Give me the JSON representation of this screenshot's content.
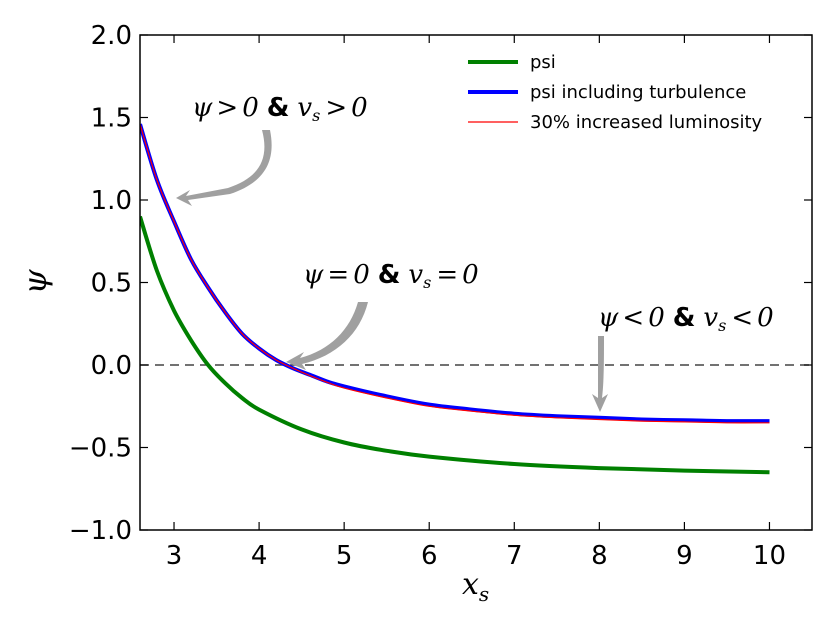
{
  "chart_data": {
    "type": "line",
    "xlabel": "x_s",
    "ylabel": "ψ",
    "xlim": [
      2.6,
      10.5
    ],
    "ylim": [
      -1.0,
      2.0
    ],
    "xticks": [
      3,
      4,
      5,
      6,
      7,
      8,
      9,
      10
    ],
    "yticks": [
      2.0,
      1.5,
      1.0,
      0.5,
      0.0,
      -0.5,
      -1.0
    ],
    "ytick_labels": [
      "2.0",
      "1.5",
      "1.0",
      "0.5",
      "0.0",
      "−0.5",
      "−1.0"
    ],
    "legend_position": "top-right",
    "reference_line": {
      "y": 0.0,
      "style": "dashed"
    },
    "series": [
      {
        "name": "psi",
        "color": "#008000",
        "x": [
          2.6,
          2.8,
          3.0,
          3.2,
          3.4,
          3.6,
          3.8,
          4.0,
          4.5,
          5.0,
          5.5,
          6.0,
          7.0,
          8.0,
          9.0,
          10.0
        ],
        "y": [
          0.9,
          0.57,
          0.33,
          0.15,
          0.0,
          -0.11,
          -0.2,
          -0.27,
          -0.39,
          -0.47,
          -0.52,
          -0.555,
          -0.6,
          -0.625,
          -0.64,
          -0.65
        ]
      },
      {
        "name": "psi including turbulence",
        "color": "#0000ff",
        "x": [
          2.6,
          2.8,
          3.0,
          3.2,
          3.4,
          3.6,
          3.8,
          4.0,
          4.2,
          4.4,
          4.6,
          4.8,
          5.0,
          5.5,
          6.0,
          6.5,
          7.0,
          7.5,
          8.0,
          8.5,
          9.0,
          9.5,
          10.0
        ],
        "y": [
          1.46,
          1.12,
          0.87,
          0.64,
          0.47,
          0.32,
          0.19,
          0.1,
          0.03,
          -0.02,
          -0.06,
          -0.1,
          -0.13,
          -0.19,
          -0.24,
          -0.27,
          -0.295,
          -0.31,
          -0.32,
          -0.33,
          -0.335,
          -0.34,
          -0.34
        ]
      },
      {
        "name": "30% increased luminosity",
        "color": "#ff0000",
        "x": [
          2.6,
          2.8,
          3.0,
          3.2,
          3.4,
          3.6,
          3.8,
          4.0,
          4.2,
          4.4,
          4.6,
          4.8,
          5.0,
          5.5,
          6.0,
          6.5,
          7.0,
          7.5,
          8.0,
          8.5,
          9.0,
          9.5,
          10.0
        ],
        "y": [
          1.46,
          1.12,
          0.87,
          0.64,
          0.47,
          0.32,
          0.19,
          0.1,
          0.03,
          -0.02,
          -0.065,
          -0.105,
          -0.14,
          -0.2,
          -0.25,
          -0.28,
          -0.305,
          -0.32,
          -0.33,
          -0.34,
          -0.345,
          -0.35,
          -0.35
        ]
      }
    ],
    "annotations": [
      {
        "text": "ψ > 0 & v_s > 0",
        "arrow_to": [
          2.9,
          1.0
        ]
      },
      {
        "text": "ψ = 0 & v_s = 0",
        "arrow_to": [
          4.3,
          0.0
        ]
      },
      {
        "text": "ψ < 0 & v_s < 0",
        "arrow_to": [
          8.0,
          -0.28
        ]
      }
    ]
  },
  "annotation_texts": {
    "a1": {
      "l": "ψ",
      "op": ">",
      "n": "0",
      "amp": "&",
      "v": "v",
      "sub": "s",
      "op2": ">",
      "n2": "0"
    },
    "a2": {
      "l": "ψ",
      "op": "=",
      "n": "0",
      "amp": "&",
      "v": "v",
      "sub": "s",
      "op2": "=",
      "n2": "0"
    },
    "a3": {
      "l": "ψ",
      "op": "<",
      "n": "0",
      "amp": "&",
      "v": "v",
      "sub": "s",
      "op2": "<",
      "n2": "0"
    }
  },
  "axis_text": {
    "xlabel_main": "x",
    "xlabel_sub": "s",
    "ylabel": "ψ"
  }
}
